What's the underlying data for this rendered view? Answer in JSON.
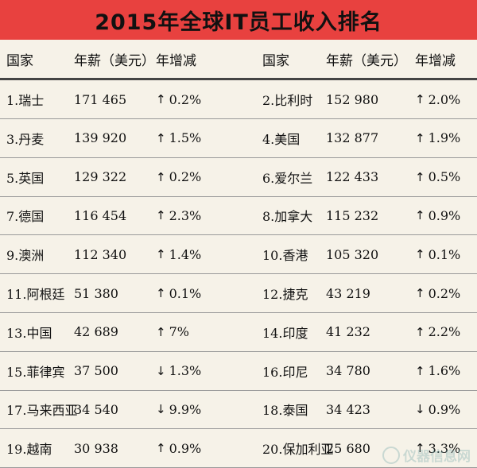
{
  "title": "2015年全球IT员工收入排名",
  "headers": {
    "country": "国家",
    "salary": "年薪（美元）",
    "change": "年增减"
  },
  "rows": [
    [
      {
        "country": "1.瑞士",
        "salary": "171 465",
        "arrow": "↑",
        "change": "0.2%"
      },
      {
        "country": "2.比利时",
        "salary": "152 980",
        "arrow": "↑",
        "change": "2.0%"
      }
    ],
    [
      {
        "country": "3.丹麦",
        "salary": "139 920",
        "arrow": "↑",
        "change": "1.5%"
      },
      {
        "country": "4.美国",
        "salary": "132 877",
        "arrow": "↑",
        "change": "1.9%"
      }
    ],
    [
      {
        "country": "5.英国",
        "salary": "129 322",
        "arrow": "↑",
        "change": "0.2%"
      },
      {
        "country": "6.爱尔兰",
        "salary": "122 433",
        "arrow": "↑",
        "change": "0.5%"
      }
    ],
    [
      {
        "country": "7.德国",
        "salary": "116 454",
        "arrow": "↑",
        "change": "2.3%"
      },
      {
        "country": "8.加拿大",
        "salary": "115 232",
        "arrow": "↑",
        "change": "0.9%"
      }
    ],
    [
      {
        "country": "9.澳洲",
        "salary": "112 340",
        "arrow": "↑",
        "change": "1.4%"
      },
      {
        "country": "10.香港",
        "salary": "105 320",
        "arrow": "↑",
        "change": "0.1%"
      }
    ],
    [
      {
        "country": "11.阿根廷",
        "salary": "51 380",
        "arrow": "↑",
        "change": "0.1%"
      },
      {
        "country": "12.捷克",
        "salary": "43 219",
        "arrow": "↑",
        "change": "0.2%"
      }
    ],
    [
      {
        "country": "13.中国",
        "salary": "42 689",
        "arrow": "↑",
        "change": "7%"
      },
      {
        "country": "14.印度",
        "salary": "41 232",
        "arrow": "↑",
        "change": "2.2%"
      }
    ],
    [
      {
        "country": "15.菲律宾",
        "salary": "37 500",
        "arrow": "↓",
        "change": "1.3%"
      },
      {
        "country": "16.印尼",
        "salary": "34 780",
        "arrow": "↑",
        "change": "1.6%"
      }
    ],
    [
      {
        "country": "17.马来西亚",
        "salary": "34 540",
        "arrow": "↓",
        "change": "9.9%"
      },
      {
        "country": "18.泰国",
        "salary": "34 423",
        "arrow": "↓",
        "change": "0.9%"
      }
    ],
    [
      {
        "country": "19.越南",
        "salary": "30 938",
        "arrow": "↑",
        "change": "0.9%"
      },
      {
        "country": "20.保加利亚",
        "salary": "25 680",
        "arrow": "↑",
        "change": "3.3%"
      }
    ]
  ],
  "watermark": {
    "text": "仪器信息网",
    "icon": "watermark-logo-icon"
  },
  "colors": {
    "title_bg": "#e8413f",
    "page_bg": "#f6f2e8"
  }
}
